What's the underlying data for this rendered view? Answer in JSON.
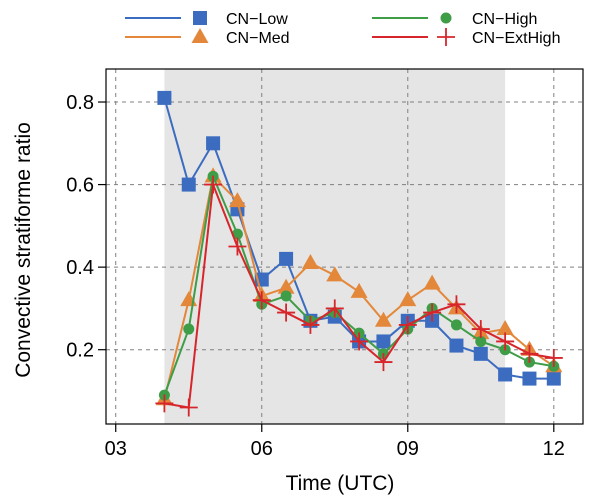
{
  "chart_data": {
    "type": "line",
    "title": "",
    "xlabel": "Time (UTC)",
    "ylabel": "Convective stratiforme ratio",
    "xlim": [
      2.8,
      12.6
    ],
    "ylim": [
      0.02,
      0.88
    ],
    "x_ticks": [
      3,
      6,
      9,
      12
    ],
    "x_tick_labels": [
      "03",
      "06",
      "09",
      "12"
    ],
    "y_ticks": [
      0.2,
      0.4,
      0.6,
      0.8
    ],
    "y_tick_labels": [
      "0.2",
      "0.4",
      "0.6",
      "0.8"
    ],
    "grid": true,
    "legend_position": "top",
    "shaded_region": {
      "x_start": 4,
      "x_end": 11,
      "color": "#e5e5e5"
    },
    "x": [
      4,
      4.5,
      5,
      5.5,
      6,
      6.5,
      7,
      7.5,
      8,
      8.5,
      9,
      9.5,
      10,
      10.5,
      11,
      11.5,
      12
    ],
    "series": [
      {
        "name": "CN−Low",
        "color": "#3b6cbf",
        "marker": "square",
        "values": [
          0.81,
          0.6,
          0.7,
          0.54,
          0.37,
          0.42,
          0.27,
          0.28,
          0.22,
          0.22,
          0.27,
          0.27,
          0.21,
          0.19,
          0.14,
          0.13,
          0.13
        ]
      },
      {
        "name": "CN−Med",
        "color": "#e3883a",
        "marker": "triangle",
        "values": [
          0.08,
          0.32,
          0.62,
          0.56,
          0.33,
          0.35,
          0.41,
          0.38,
          0.34,
          0.27,
          0.32,
          0.36,
          0.3,
          0.24,
          0.25,
          0.2,
          0.16
        ]
      },
      {
        "name": "CN−High",
        "color": "#3f9d48",
        "marker": "circle",
        "values": [
          0.09,
          0.25,
          0.62,
          0.48,
          0.31,
          0.33,
          0.27,
          0.29,
          0.24,
          0.19,
          0.25,
          0.3,
          0.26,
          0.22,
          0.2,
          0.17,
          0.16
        ]
      },
      {
        "name": "CN−ExtHigh",
        "color": "#d7262b",
        "marker": "plus",
        "values": [
          0.07,
          0.06,
          0.6,
          0.45,
          0.32,
          0.29,
          0.26,
          0.3,
          0.22,
          0.17,
          0.26,
          0.29,
          0.31,
          0.25,
          0.22,
          0.19,
          0.18
        ]
      }
    ]
  }
}
